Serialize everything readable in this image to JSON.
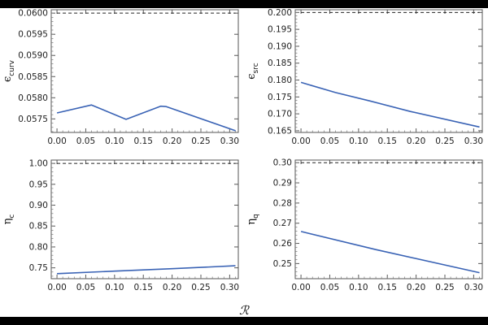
{
  "shared_xlabel": "ℛ",
  "colors": {
    "series": "#3a63b5",
    "reference": "#222222",
    "frame": "#555555"
  },
  "chart_data": [
    {
      "type": "line",
      "ylabel": {
        "symbol": "ϵ",
        "sub": "curv"
      },
      "xlim": [
        -0.01,
        0.315
      ],
      "ylim": [
        0.05718,
        0.06008
      ],
      "xticks": [
        0.0,
        0.05,
        0.1,
        0.15,
        0.2,
        0.25,
        0.3
      ],
      "xtick_labels": [
        "0.00",
        "0.05",
        "0.10",
        "0.15",
        "0.20",
        "0.25",
        "0.30"
      ],
      "yticks": [
        0.0575,
        0.058,
        0.0585,
        0.059,
        0.0595,
        0.06
      ],
      "ytick_labels": [
        "0.0575",
        "0.0580",
        "0.0585",
        "0.0590",
        "0.0595",
        "0.0600"
      ],
      "series": [
        {
          "x": [
            0.0,
            0.06,
            0.12,
            0.18,
            0.19,
            0.31
          ],
          "y": [
            0.05764,
            0.05783,
            0.05749,
            0.0578,
            0.05779,
            0.05722
          ]
        }
      ],
      "reference_line": 0.06
    },
    {
      "type": "line",
      "ylabel": {
        "symbol": "ϵ",
        "sub": "src"
      },
      "xlim": [
        -0.01,
        0.315
      ],
      "ylim": [
        0.1645,
        0.2008
      ],
      "xticks": [
        0.0,
        0.05,
        0.1,
        0.15,
        0.2,
        0.25,
        0.3
      ],
      "xtick_labels": [
        "0.00",
        "0.05",
        "0.10",
        "0.15",
        "0.20",
        "0.25",
        "0.30"
      ],
      "yticks": [
        0.165,
        0.17,
        0.175,
        0.18,
        0.185,
        0.19,
        0.195,
        0.2
      ],
      "ytick_labels": [
        "0.165",
        "0.170",
        "0.175",
        "0.180",
        "0.185",
        "0.190",
        "0.195",
        "0.200"
      ],
      "series": [
        {
          "x": [
            0.0,
            0.06,
            0.12,
            0.19,
            0.31
          ],
          "y": [
            0.1793,
            0.1763,
            0.1738,
            0.1707,
            0.1661
          ]
        }
      ],
      "reference_line": 0.2
    },
    {
      "type": "line",
      "ylabel": {
        "symbol": "η",
        "sub": "c"
      },
      "xlim": [
        -0.01,
        0.315
      ],
      "ylim": [
        0.724,
        1.008
      ],
      "xticks": [
        0.0,
        0.05,
        0.1,
        0.15,
        0.2,
        0.25,
        0.3
      ],
      "xtick_labels": [
        "0.00",
        "0.05",
        "0.10",
        "0.15",
        "0.20",
        "0.25",
        "0.30"
      ],
      "yticks": [
        0.75,
        0.8,
        0.85,
        0.9,
        0.95,
        1.0
      ],
      "ytick_labels": [
        "0.75",
        "0.80",
        "0.85",
        "0.90",
        "0.95",
        "1.00"
      ],
      "series": [
        {
          "x": [
            0.0,
            0.1,
            0.2,
            0.31
          ],
          "y": [
            0.736,
            0.742,
            0.748,
            0.755
          ]
        }
      ],
      "reference_line": 1.0
    },
    {
      "type": "line",
      "ylabel": {
        "symbol": "η",
        "sub": "q"
      },
      "xlim": [
        -0.01,
        0.315
      ],
      "ylim": [
        0.2425,
        0.3013
      ],
      "xticks": [
        0.0,
        0.05,
        0.1,
        0.15,
        0.2,
        0.25,
        0.3
      ],
      "xtick_labels": [
        "0.00",
        "0.05",
        "0.10",
        "0.15",
        "0.20",
        "0.25",
        "0.30"
      ],
      "yticks": [
        0.25,
        0.26,
        0.27,
        0.28,
        0.29,
        0.3
      ],
      "ytick_labels": [
        "0.25",
        "0.26",
        "0.27",
        "0.28",
        "0.29",
        "0.30"
      ],
      "series": [
        {
          "x": [
            0.0,
            0.13,
            0.31
          ],
          "y": [
            0.2659,
            0.2569,
            0.2455
          ]
        }
      ],
      "reference_line": 0.3
    }
  ]
}
